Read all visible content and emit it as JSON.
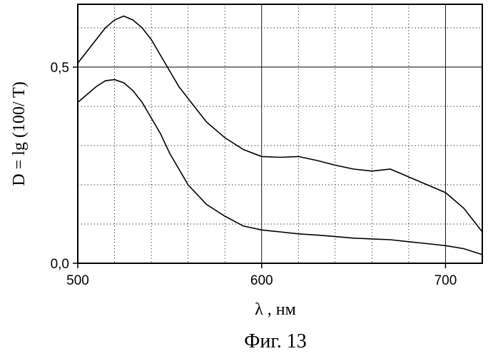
{
  "chart_data": {
    "type": "line",
    "title": "",
    "xlabel": "λ , нм",
    "ylabel": "D = lg (100/ T)",
    "caption": "Фиг. 13",
    "xlim": [
      500,
      720
    ],
    "ylim": [
      0,
      0.66
    ],
    "x_ticks": [
      500,
      600,
      700
    ],
    "x_tick_labels": [
      "500",
      "600",
      "700"
    ],
    "y_ticks": [
      0,
      0.5
    ],
    "y_tick_labels": [
      "0,0",
      "0,5"
    ],
    "grid": true,
    "series": [
      {
        "x": [
          500,
          505,
          510,
          515,
          520,
          525,
          530,
          535,
          540,
          545,
          550,
          555,
          560,
          565,
          570,
          580,
          590,
          600,
          610,
          620,
          630,
          640,
          650,
          660,
          670,
          680,
          690,
          700,
          710,
          720
        ],
        "values": [
          0.51,
          0.54,
          0.57,
          0.6,
          0.62,
          0.63,
          0.62,
          0.6,
          0.57,
          0.53,
          0.49,
          0.45,
          0.42,
          0.39,
          0.36,
          0.32,
          0.29,
          0.272,
          0.27,
          0.272,
          0.262,
          0.25,
          0.24,
          0.235,
          0.24,
          0.22,
          0.2,
          0.18,
          0.14,
          0.08
        ]
      },
      {
        "x": [
          500,
          505,
          510,
          515,
          520,
          525,
          530,
          535,
          540,
          545,
          550,
          555,
          560,
          570,
          580,
          590,
          600,
          610,
          620,
          630,
          640,
          650,
          660,
          670,
          680,
          690,
          700,
          710,
          720
        ],
        "values": [
          0.41,
          0.43,
          0.45,
          0.465,
          0.468,
          0.46,
          0.44,
          0.41,
          0.37,
          0.33,
          0.28,
          0.24,
          0.2,
          0.15,
          0.12,
          0.095,
          0.085,
          0.08,
          0.075,
          0.072,
          0.068,
          0.064,
          0.062,
          0.06,
          0.055,
          0.05,
          0.045,
          0.037,
          0.022
        ]
      }
    ]
  }
}
